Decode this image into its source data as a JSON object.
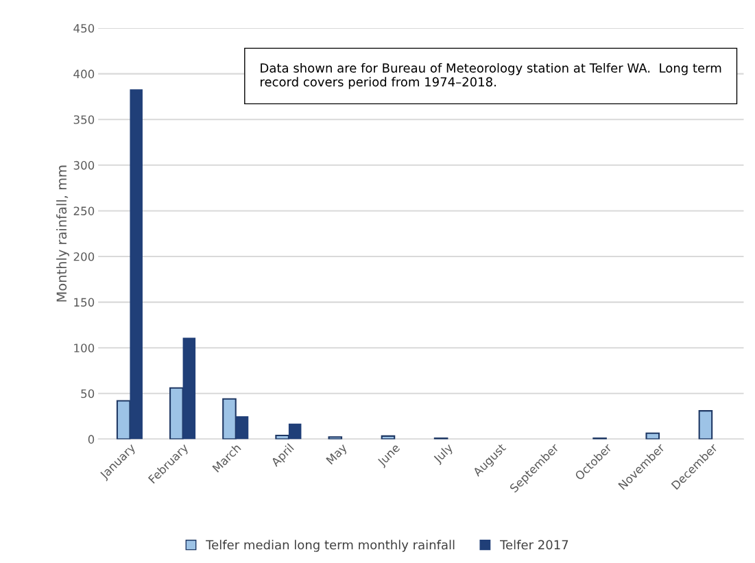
{
  "chart_data": {
    "type": "bar",
    "ylabel": "Monthly rainfall, mm",
    "categories": [
      "January",
      "February",
      "March",
      "April",
      "May",
      "June",
      "July",
      "August",
      "September",
      "October",
      "November",
      "December"
    ],
    "series": [
      {
        "name": "Telfer median long term monthly rainfall",
        "color": "#9dc3e6",
        "values": [
          42,
          56,
          44,
          4,
          2.4,
          3.4,
          1,
          null,
          null,
          1,
          6.5,
          31
        ]
      },
      {
        "name": "Telfer 2017",
        "color": "#203f78",
        "values": [
          383,
          111,
          25,
          17,
          0,
          0,
          0,
          0,
          0,
          0,
          0,
          0
        ]
      }
    ],
    "ylim": [
      0,
      450
    ],
    "yticks": [
      0,
      50,
      100,
      150,
      200,
      250,
      300,
      350,
      400,
      450
    ],
    "grid": "y",
    "legend": "bottom",
    "annotations": [
      "Data shown are for Bureau of Meteorology station at Telfer WA.  Long term record covers period from 1974–2018."
    ]
  }
}
